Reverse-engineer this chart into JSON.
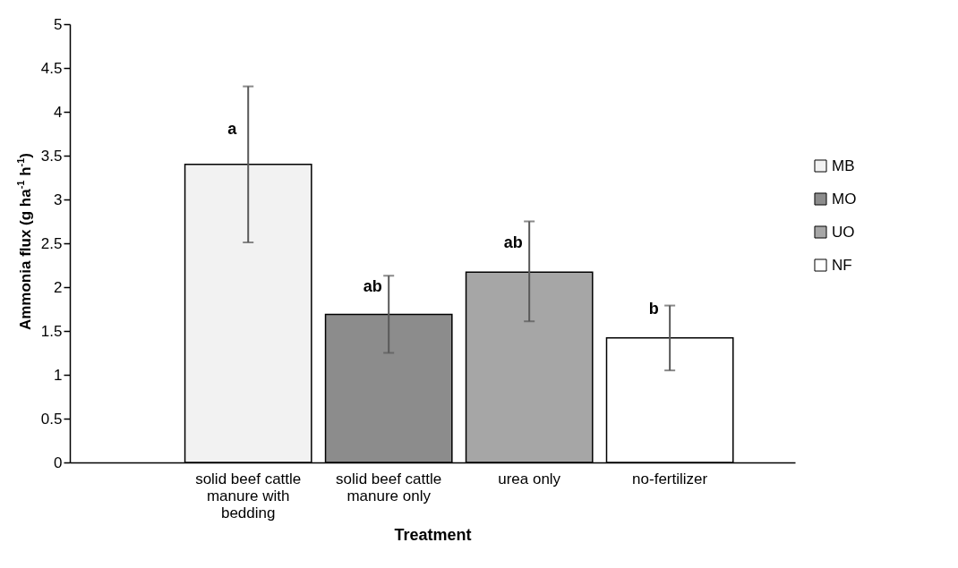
{
  "chart_data": {
    "type": "bar",
    "xlabel": "Treatment",
    "ylabel": "Ammonia flux (g ha$^{-1}$ h$^{-1}$)",
    "categories": [
      "solid beef cattle manure with bedding",
      "solid beef cattle manure only",
      "urea only",
      "no-fertilizer"
    ],
    "series": [
      {
        "name": "MB",
        "color": "#f2f2f2",
        "values": [
          3.4,
          null,
          null,
          null
        ],
        "errors": [
          [
            2.51,
            4.29
          ],
          null,
          null,
          null
        ]
      },
      {
        "name": "MO",
        "color": "#8c8c8c",
        "values": [
          null,
          1.69,
          null,
          null
        ],
        "errors": [
          null,
          [
            1.25,
            2.13
          ],
          null,
          null
        ]
      },
      {
        "name": "UO",
        "color": "#a6a6a6",
        "values": [
          null,
          null,
          2.17,
          null
        ],
        "errors": [
          null,
          null,
          [
            1.61,
            2.75
          ],
          null
        ]
      },
      {
        "name": "NF",
        "color": "#ffffff",
        "values": [
          null,
          null,
          null,
          1.42
        ],
        "errors": [
          null,
          null,
          null,
          [
            1.05,
            1.79
          ]
        ]
      }
    ],
    "annotations": [
      {
        "text": "a",
        "x": "solid beef cattle manure with bedding",
        "y": 3.8
      },
      {
        "text": "ab",
        "x": "solid beef cattle manure only",
        "y": 2.0
      },
      {
        "text": "ab",
        "x": "urea only",
        "y": 2.5
      },
      {
        "text": "b",
        "x": "no-fertilizer",
        "y": 1.75
      }
    ],
    "ylim": [
      0,
      5
    ],
    "yticks": [
      0,
      0.5,
      1,
      1.5,
      2,
      2.5,
      3,
      3.5,
      4,
      4.5,
      5
    ],
    "grid": false,
    "legend": "right"
  }
}
